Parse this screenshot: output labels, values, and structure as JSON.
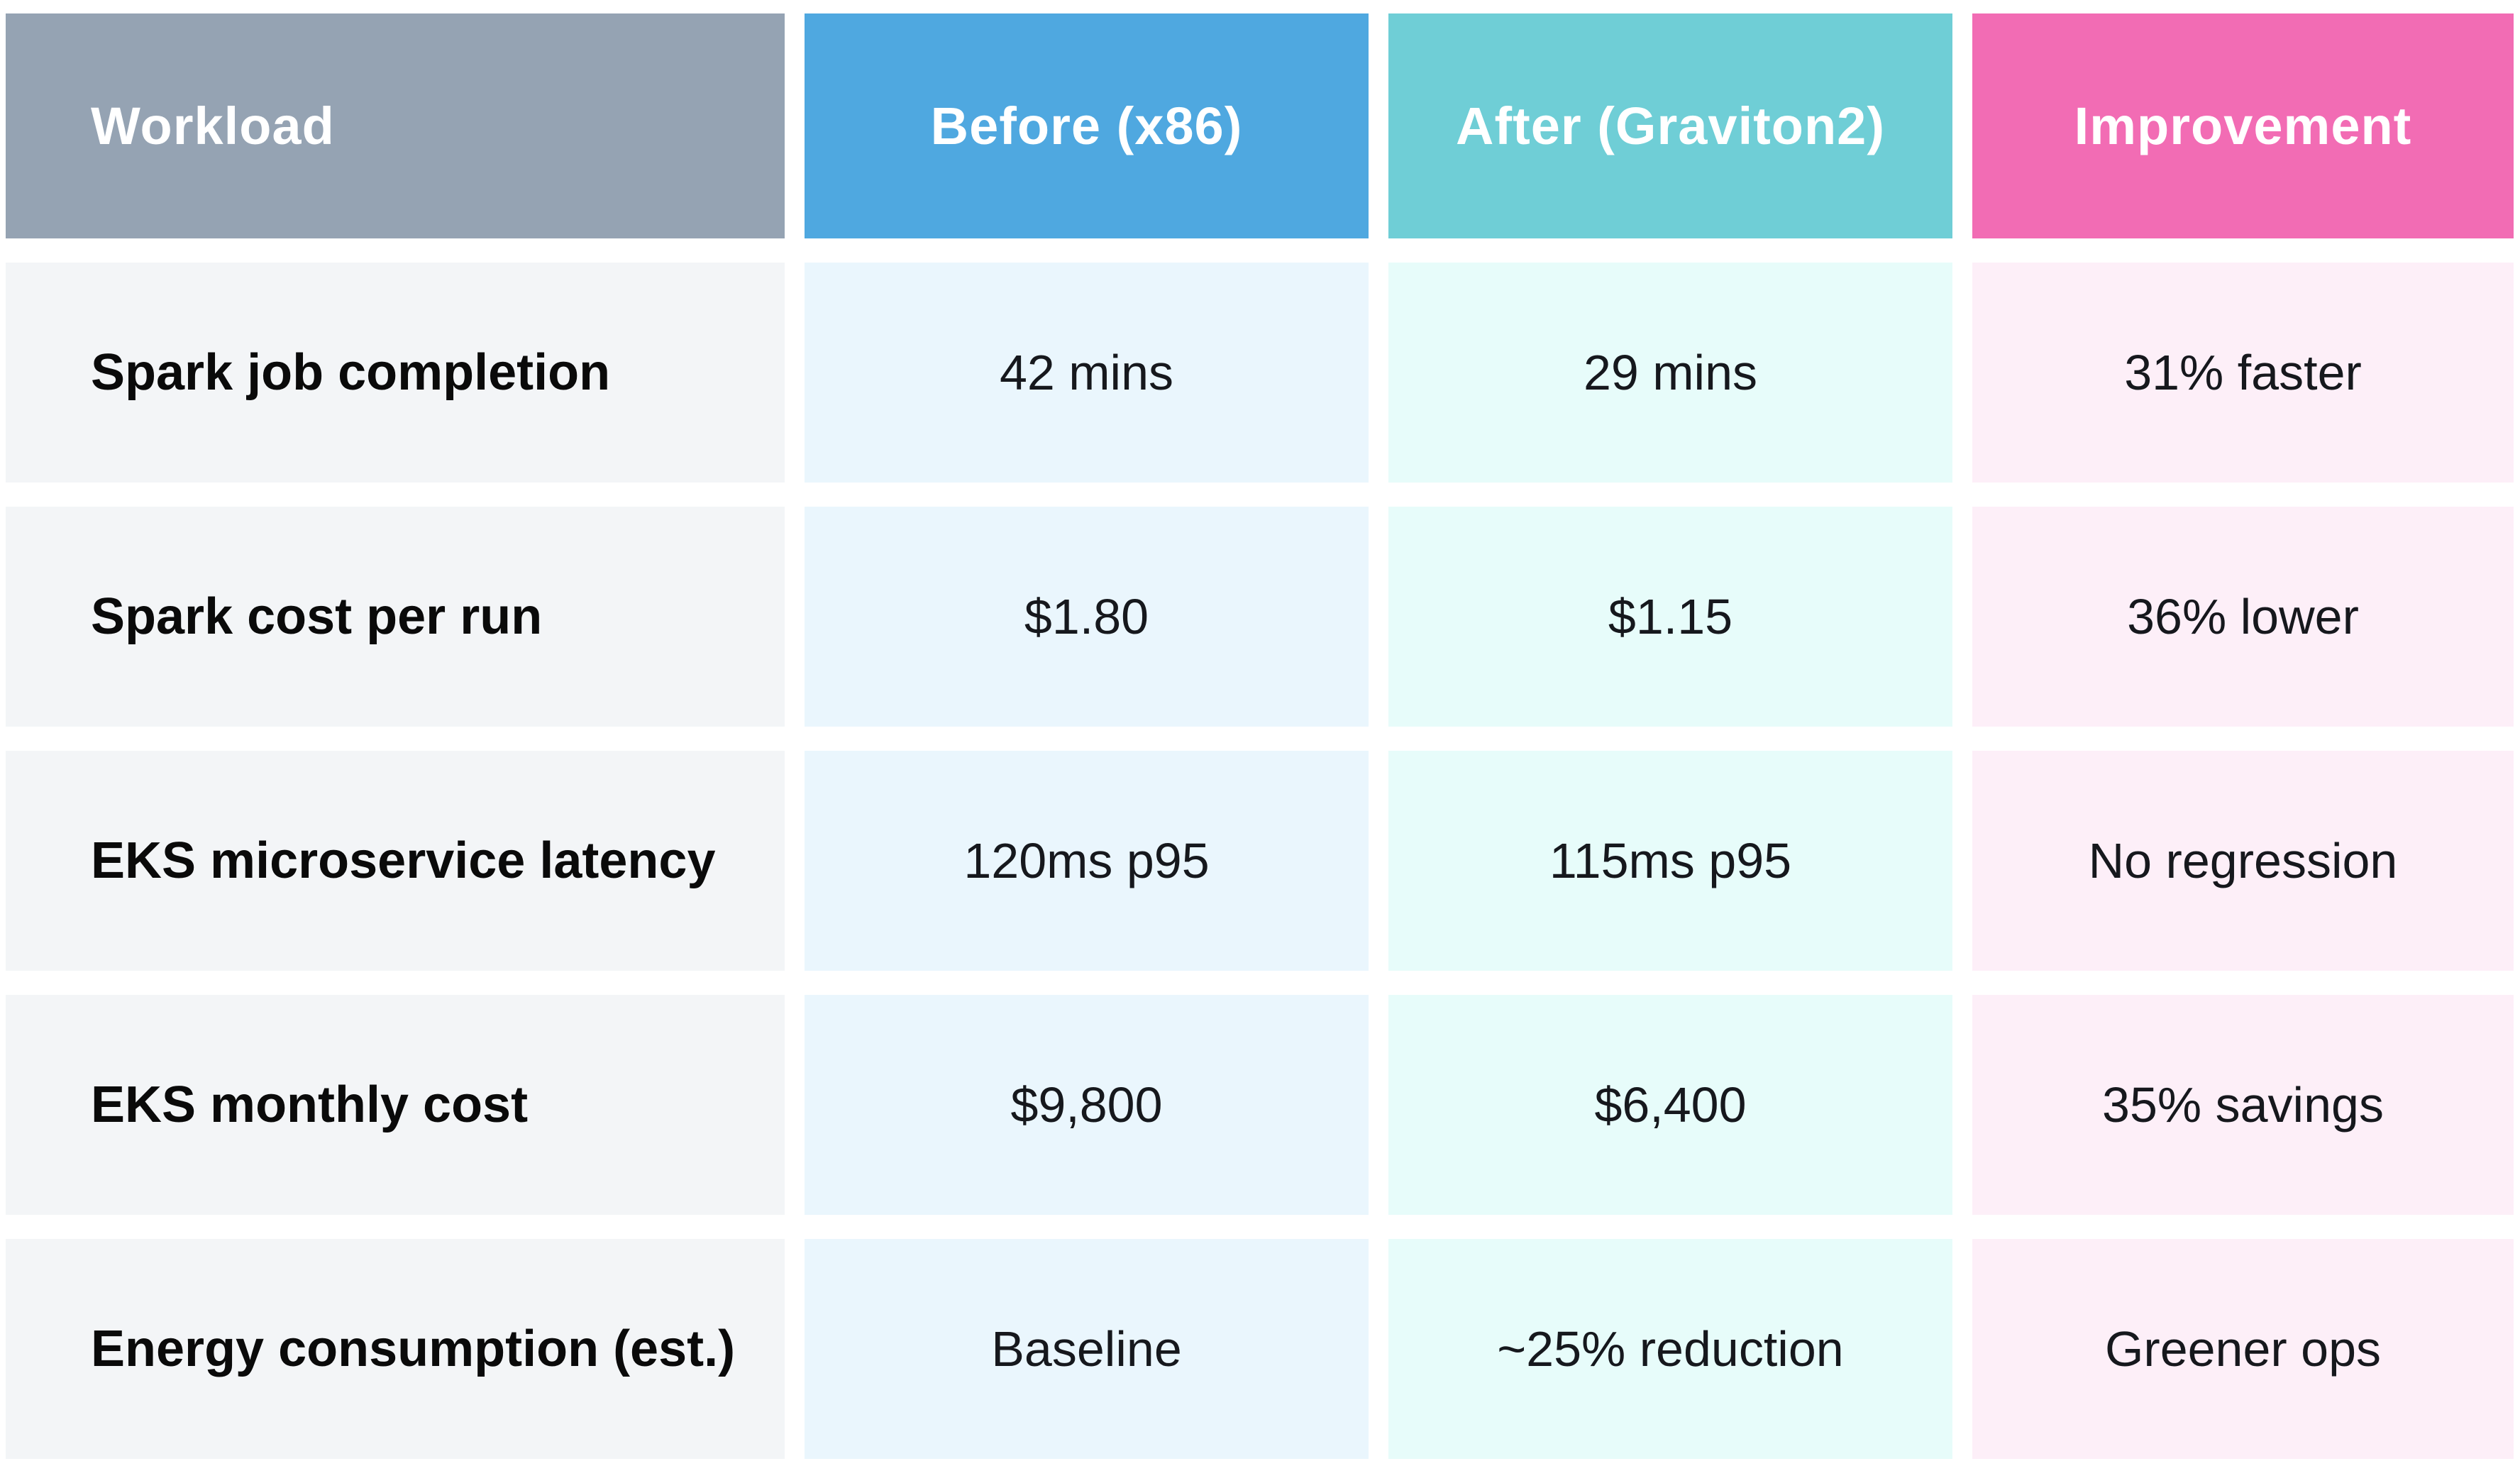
{
  "chart_data": {
    "type": "table",
    "columns": [
      {
        "label": "Workload",
        "header_bg": "#95a3b3",
        "cell_bg": "#f3f5f7"
      },
      {
        "label": "Before (x86)",
        "header_bg": "#4fa8e0",
        "cell_bg": "#eaf6fd"
      },
      {
        "label": "After (Graviton2)",
        "header_bg": "#6fced6",
        "cell_bg": "#e7fcfa"
      },
      {
        "label": "Improvement",
        "header_bg": "#f26cb4",
        "cell_bg": "#fdeff8"
      }
    ],
    "rows": [
      {
        "workload": "Spark job completion",
        "before": "42 mins",
        "after": "29 mins",
        "improvement": "31% faster"
      },
      {
        "workload": "Spark cost per run",
        "before": "$1.80",
        "after": "$1.15",
        "improvement": "36% lower"
      },
      {
        "workload": "EKS microservice latency",
        "before": "120ms p95",
        "after": "115ms p95",
        "improvement": "No regression"
      },
      {
        "workload": "EKS monthly cost",
        "before": "$9,800",
        "after": "$6,400",
        "improvement": "35% savings"
      },
      {
        "workload": "Energy consumption (est.)",
        "before": "Baseline",
        "after": "~25% reduction",
        "improvement": "Greener ops"
      }
    ],
    "layout": {
      "header_text_color": "#ffffff",
      "label_text_color": "#0a0a0a",
      "value_text_color": "#16181d",
      "page_background": "#ffffff"
    }
  }
}
